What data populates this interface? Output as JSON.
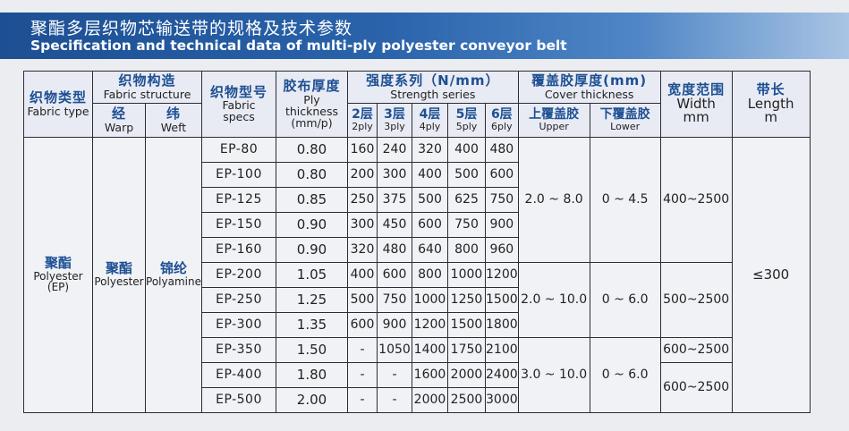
{
  "header": {
    "title_zh": "聚酯多层织物芯输送带的规格及技术参数",
    "title_en": "Specification and technical data of multi-ply polyester conveyor belt"
  },
  "columns": {
    "fabric_type": {
      "zh": "织物类型",
      "en": "Fabric type"
    },
    "fabric_structure": {
      "zh": "织物构造",
      "en": "Fabric structure"
    },
    "warp": {
      "zh": "经",
      "en": "Warp"
    },
    "weft": {
      "zh": "纬",
      "en": "Weft"
    },
    "fabric_specs": {
      "zh": "织物型号",
      "en1": "Fabric",
      "en2": "specs"
    },
    "ply_thickness": {
      "zh": "胶布厚度",
      "en1": "Ply",
      "en2": "thickness",
      "en3": "(mm/p)"
    },
    "strength": {
      "zh": "强度系列（N/mm）",
      "en": "Strength series"
    },
    "plies": [
      {
        "zh": "2层",
        "en": "2ply"
      },
      {
        "zh": "3层",
        "en": "3ply"
      },
      {
        "zh": "4层",
        "en": "4ply"
      },
      {
        "zh": "5层",
        "en": "5ply"
      },
      {
        "zh": "6层",
        "en": "6ply"
      }
    ],
    "cover": {
      "zh": "覆盖胶厚度(mm)",
      "en": "Cover thickness"
    },
    "upper": {
      "zh": "上覆盖胶",
      "en": "Upper"
    },
    "lower": {
      "zh": "下覆盖胶",
      "en": "Lower"
    },
    "width": {
      "zh": "宽度范围",
      "en1": "Width",
      "en2": "mm"
    },
    "length": {
      "zh": "带长",
      "en1": "Length",
      "en2": "m"
    }
  },
  "material": {
    "type_zh": "聚酯",
    "type_en": "Polyester",
    "type_abbr": "(EP)",
    "warp_zh": "聚酯",
    "warp_en": "Polyester",
    "weft_zh": "锦纶",
    "weft_en": "Polyamine"
  },
  "rows": [
    {
      "spec": "EP-80",
      "thickness": "0.80",
      "s": [
        "160",
        "240",
        "320",
        "400",
        "480"
      ]
    },
    {
      "spec": "EP-100",
      "thickness": "0.80",
      "s": [
        "200",
        "300",
        "400",
        "500",
        "600"
      ]
    },
    {
      "spec": "EP-125",
      "thickness": "0.85",
      "s": [
        "250",
        "375",
        "500",
        "625",
        "750"
      ]
    },
    {
      "spec": "EP-150",
      "thickness": "0.90",
      "s": [
        "300",
        "450",
        "600",
        "750",
        "900"
      ]
    },
    {
      "spec": "EP-160",
      "thickness": "0.90",
      "s": [
        "320",
        "480",
        "640",
        "800",
        "960"
      ]
    },
    {
      "spec": "EP-200",
      "thickness": "1.05",
      "s": [
        "400",
        "600",
        "800",
        "1000",
        "1200"
      ]
    },
    {
      "spec": "EP-250",
      "thickness": "1.25",
      "s": [
        "500",
        "750",
        "1000",
        "1250",
        "1500"
      ]
    },
    {
      "spec": "EP-300",
      "thickness": "1.35",
      "s": [
        "600",
        "900",
        "1200",
        "1500",
        "1800"
      ]
    },
    {
      "spec": "EP-350",
      "thickness": "1.50",
      "s": [
        "-",
        "1050",
        "1400",
        "1750",
        "2100"
      ]
    },
    {
      "spec": "EP-400",
      "thickness": "1.80",
      "s": [
        "-",
        "-",
        "1600",
        "2000",
        "2400"
      ]
    },
    {
      "spec": "EP-500",
      "thickness": "2.00",
      "s": [
        "-",
        "-",
        "2000",
        "2500",
        "3000"
      ]
    }
  ],
  "groups": [
    {
      "upper": "2.0 ~ 8.0",
      "lower": "0 ~ 4.5",
      "width": "400~2500"
    },
    {
      "upper": "2.0 ~ 10.0",
      "lower": "0 ~ 6.0",
      "width": "500~2500"
    },
    {
      "upper": "3.0 ~ 10.0",
      "lower": "0 ~ 6.0",
      "width_a": "600~2500",
      "width_b": "600~2500"
    }
  ],
  "length_value": "≤300"
}
